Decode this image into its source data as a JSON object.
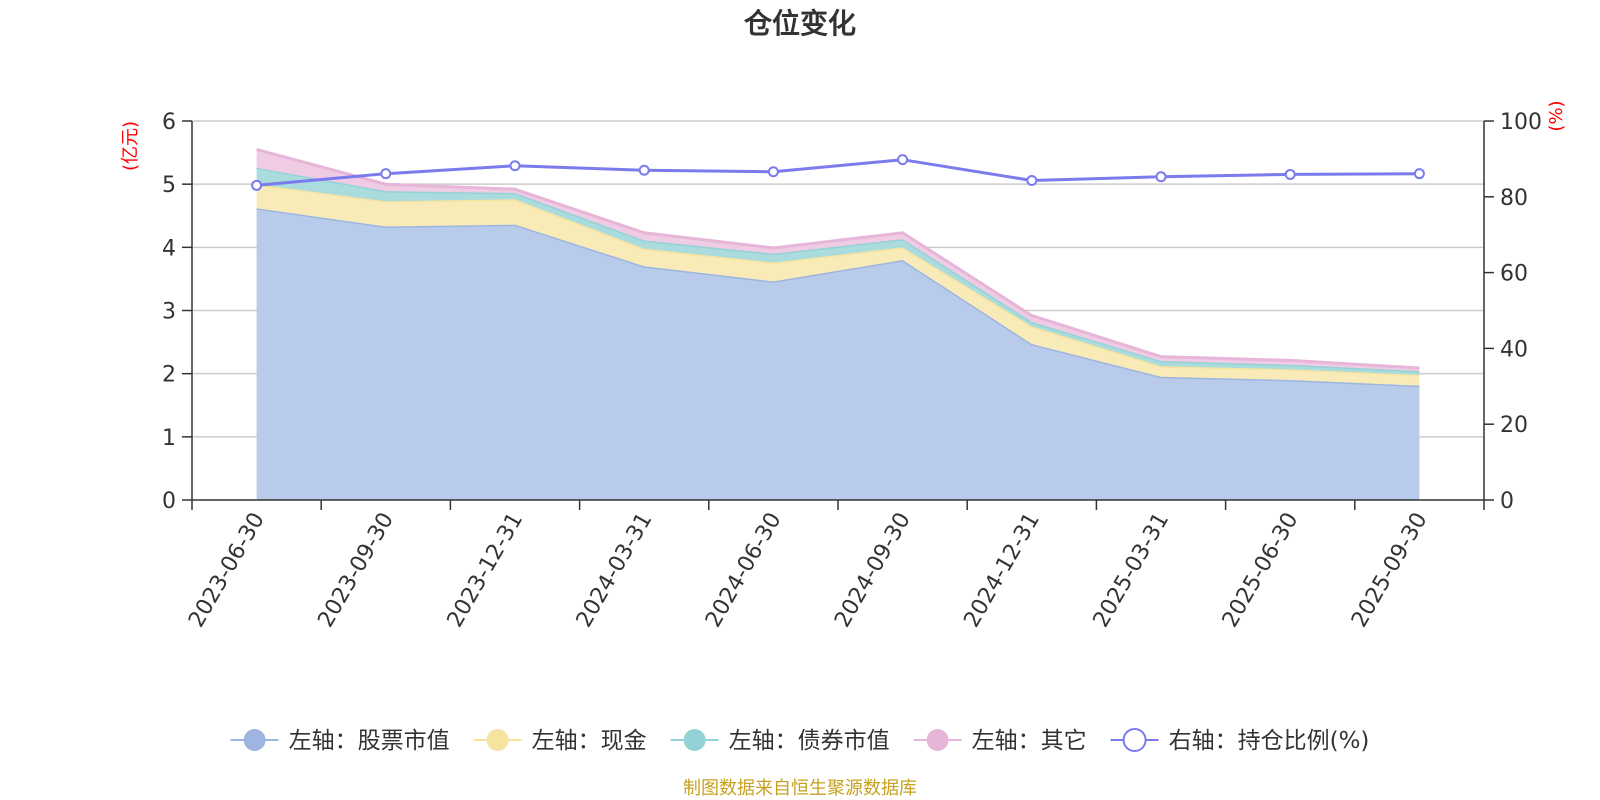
{
  "chart_data": {
    "type": "area",
    "title": "仓位变化",
    "categories": [
      "2023-06-30",
      "2023-09-30",
      "2023-12-31",
      "2024-03-31",
      "2024-06-30",
      "2024-09-30",
      "2024-12-31",
      "2025-03-31",
      "2025-06-30",
      "2025-09-30"
    ],
    "left_axis": {
      "unit": "(亿元)",
      "ylim": [
        0,
        6
      ],
      "ticks": [
        "0",
        "1",
        "2",
        "3",
        "4",
        "5",
        "6"
      ]
    },
    "right_axis": {
      "unit": "(%)",
      "ylim": [
        0,
        100
      ],
      "ticks": [
        "0",
        "20",
        "40",
        "60",
        "80",
        "100"
      ]
    },
    "series": [
      {
        "name": "左轴：股票市值",
        "axis": "left",
        "stacked": true,
        "color": "#9db5e0",
        "fill": "#b8cbea",
        "values": [
          4.62,
          4.33,
          4.36,
          3.7,
          3.46,
          3.8,
          2.47,
          1.95,
          1.9,
          1.81
        ]
      },
      {
        "name": "左轴：现金",
        "axis": "left",
        "stacked": true,
        "color": "#f6e3a0",
        "fill": "#f8ebb8",
        "values": [
          0.38,
          0.4,
          0.4,
          0.28,
          0.3,
          0.2,
          0.28,
          0.17,
          0.17,
          0.17
        ]
      },
      {
        "name": "左轴：债券市值",
        "axis": "left",
        "stacked": true,
        "color": "#93d2d6",
        "fill": "#aadcdd",
        "values": [
          0.26,
          0.16,
          0.1,
          0.13,
          0.14,
          0.13,
          0.07,
          0.08,
          0.07,
          0.06
        ]
      },
      {
        "name": "左轴：其它",
        "axis": "left",
        "stacked": true,
        "color": "#e6b5d8",
        "fill": "#f0cce4",
        "values": [
          0.29,
          0.11,
          0.06,
          0.12,
          0.09,
          0.1,
          0.1,
          0.07,
          0.07,
          0.05
        ]
      },
      {
        "name": "右轴：持仓比例(%)",
        "axis": "right",
        "type": "line",
        "color": "#7b7bee",
        "values": [
          83.0,
          86.1,
          88.2,
          87.0,
          86.6,
          89.8,
          84.3,
          85.3,
          85.9,
          86.1
        ]
      }
    ],
    "legend_position": "bottom",
    "grid": true
  },
  "source_text": "制图数据来自恒生聚源数据库"
}
